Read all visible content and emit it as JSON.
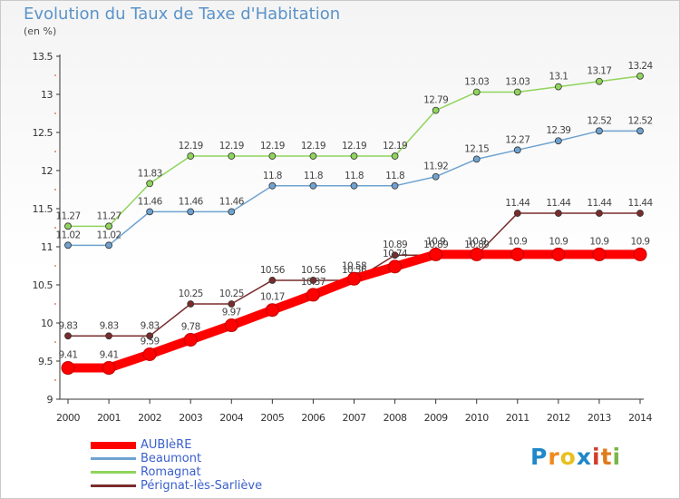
{
  "header": {
    "title": "Evolution du Taux de Taxe d'Habitation",
    "subtitle": "(en %)"
  },
  "brand": {
    "logo_text": "Proxiti",
    "letters": [
      {
        "ch": "P",
        "color": "#1e88c8"
      },
      {
        "ch": "r",
        "color": "#f08a1c"
      },
      {
        "ch": "o",
        "color": "#e8c020"
      },
      {
        "ch": "x",
        "color": "#1e88c8"
      },
      {
        "ch": "i",
        "color": "#d23c2a"
      },
      {
        "ch": "t",
        "color": "#e07a1a"
      },
      {
        "ch": "i",
        "color": "#7ab648"
      }
    ]
  },
  "chart_data": {
    "type": "line",
    "x": [
      2000,
      2001,
      2002,
      2003,
      2004,
      2005,
      2006,
      2007,
      2008,
      2009,
      2010,
      2011,
      2012,
      2013,
      2014
    ],
    "ylim": [
      9,
      13.5
    ],
    "yticks": [
      9,
      9.5,
      10,
      10.5,
      11,
      11.5,
      12,
      12.5,
      13,
      13.5
    ],
    "ytick_labels": [
      "9",
      "9.5",
      "10",
      "10.5",
      "11",
      "11.5",
      "12",
      "12.5",
      "13",
      "13.5"
    ],
    "grid": false,
    "legend_position": "bottom-left",
    "series": [
      {
        "name": "AUBIèRE",
        "color": "#ff0000",
        "emphasis": true,
        "values": [
          9.41,
          9.41,
          9.59,
          9.78,
          9.97,
          10.17,
          10.37,
          10.58,
          10.74,
          10.9,
          10.9,
          10.9,
          10.9,
          10.9,
          10.9
        ],
        "labels": [
          "9.41",
          "9.41",
          "9.59",
          "9.78",
          "9.97",
          "10.17",
          "10.37",
          "10.58",
          "10.74",
          "10.9",
          "10.9",
          "10.9",
          "10.9",
          "10.9",
          "10.9"
        ]
      },
      {
        "name": "Beaumont",
        "color": "#6fa2d0",
        "emphasis": false,
        "values": [
          11.02,
          11.02,
          11.46,
          11.46,
          11.46,
          11.8,
          11.8,
          11.8,
          11.8,
          11.92,
          12.15,
          12.27,
          12.39,
          12.52,
          12.52
        ],
        "labels": [
          "11.02",
          "11.02",
          "11.46",
          "11.46",
          "11.46",
          "11.8",
          "11.8",
          "11.8",
          "11.8",
          "11.92",
          "12.15",
          "12.27",
          "12.39",
          "12.52",
          "12.52"
        ]
      },
      {
        "name": "Romagnat",
        "color": "#8fd45c",
        "emphasis": false,
        "values": [
          11.27,
          11.27,
          11.83,
          12.19,
          12.19,
          12.19,
          12.19,
          12.19,
          12.19,
          12.79,
          13.03,
          13.03,
          13.1,
          13.17,
          13.24
        ],
        "labels": [
          "11.27",
          "11.27",
          "11.83",
          "12.19",
          "12.19",
          "12.19",
          "12.19",
          "12.19",
          "12.19",
          "12.79",
          "13.03",
          "13.03",
          "13.1",
          "13.17",
          "13.24"
        ]
      },
      {
        "name": "Pérignat-lès-Sarliève",
        "color": "#7a2c2c",
        "emphasis": false,
        "values": [
          9.83,
          9.83,
          9.83,
          10.25,
          10.25,
          10.56,
          10.56,
          10.56,
          10.89,
          10.89,
          10.89,
          11.44,
          11.44,
          11.44,
          11.44
        ],
        "labels": [
          "9.83",
          "9.83",
          "9.83",
          "10.25",
          "10.25",
          "10.56",
          "10.56",
          "10.56",
          "10.89",
          "10.89",
          "10.89",
          "11.44",
          "11.44",
          "11.44",
          "11.44"
        ]
      }
    ]
  }
}
